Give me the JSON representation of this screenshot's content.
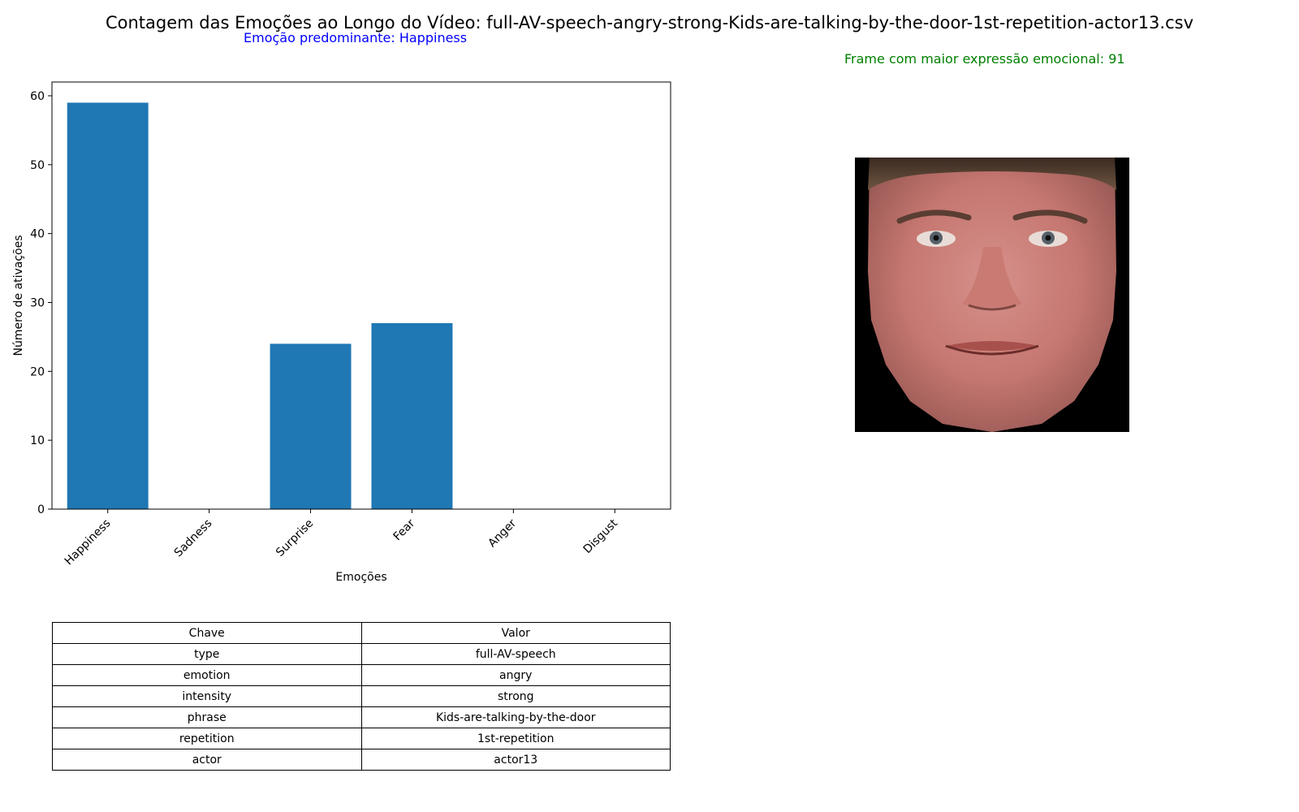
{
  "header": {
    "title": "Contagem das Emoções ao Longo do Vídeo: full-AV-speech-angry-strong-Kids-are-talking-by-the-door-1st-repetition-actor13.csv",
    "predominant": "Emoção predominante: Happiness",
    "frame_label": "Frame com maior expressão emocional: 91"
  },
  "chart_data": {
    "type": "bar",
    "categories": [
      "Happiness",
      "Sadness",
      "Surprise",
      "Fear",
      "Anger",
      "Disgust"
    ],
    "values": [
      59,
      0,
      24,
      27,
      0,
      0
    ],
    "xlabel": "Emoções",
    "ylabel": "Número de ativações",
    "ylim": [
      0,
      62
    ],
    "yticks": [
      0,
      10,
      20,
      30,
      40,
      50,
      60
    ],
    "color": "#1f77b4",
    "grid": false
  },
  "table": {
    "headers": [
      "Chave",
      "Valor"
    ],
    "rows": [
      [
        "type",
        "full-AV-speech"
      ],
      [
        "emotion",
        "angry"
      ],
      [
        "intensity",
        "strong"
      ],
      [
        "phrase",
        "Kids-are-talking-by-the-door"
      ],
      [
        "repetition",
        "1st-repetition"
      ],
      [
        "actor",
        "actor13"
      ]
    ]
  },
  "face_image": {
    "depicts": "face-photo"
  }
}
